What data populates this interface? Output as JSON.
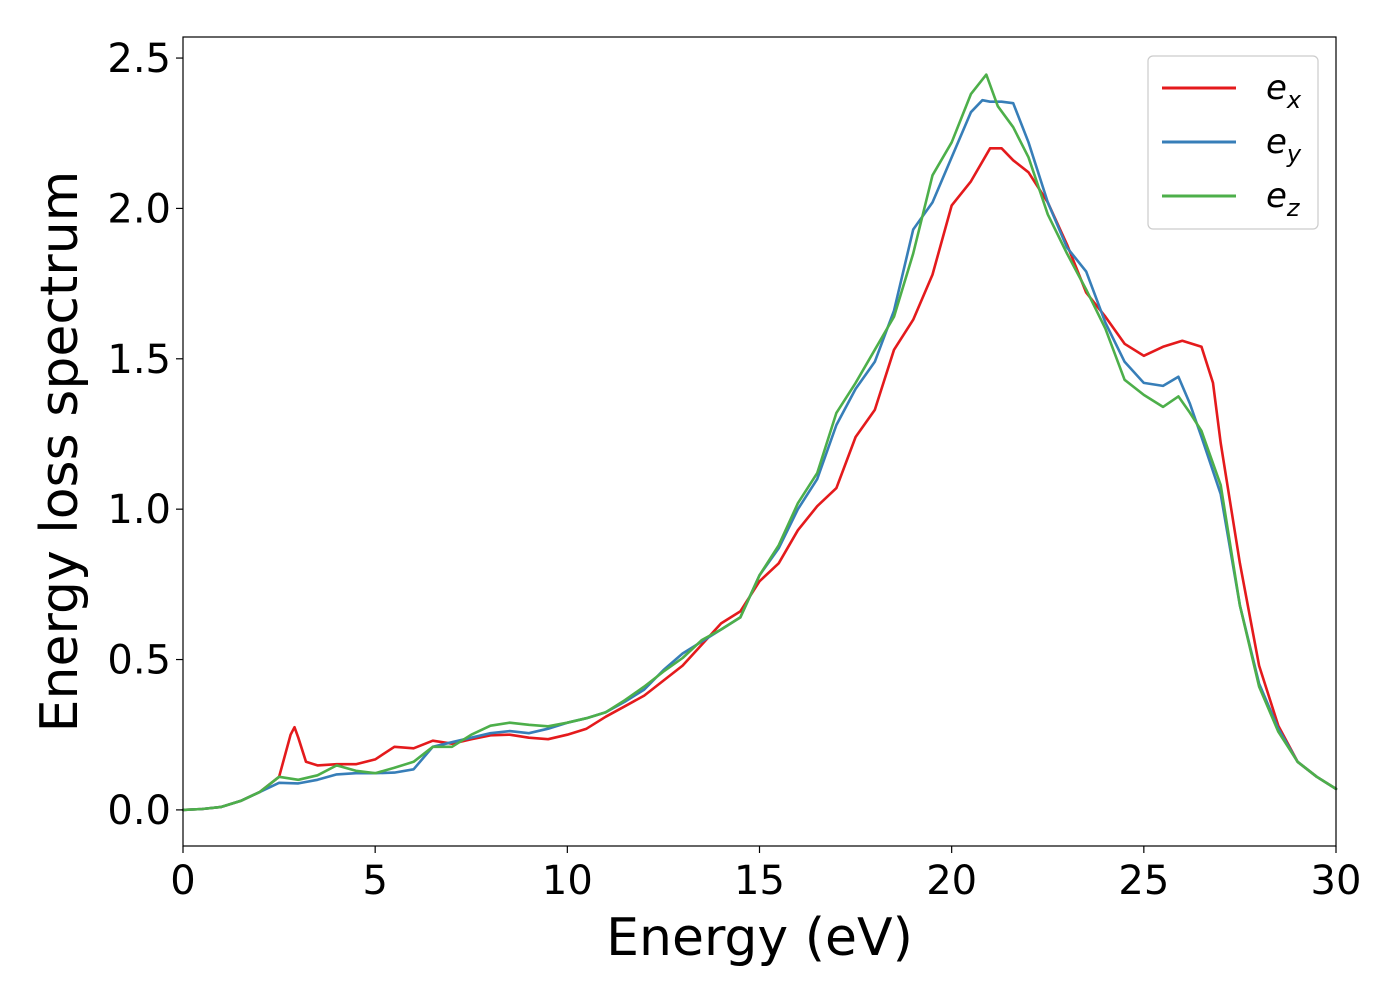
{
  "chart_data": {
    "type": "line",
    "title": "",
    "xlabel": "Energy (eV)",
    "ylabel": "Energy loss spectrum",
    "xlim": [
      0,
      30
    ],
    "ylim": [
      -0.12,
      2.57
    ],
    "xticks": [
      0,
      5,
      10,
      15,
      20,
      25,
      30
    ],
    "xtick_labels": [
      "0",
      "5",
      "10",
      "15",
      "20",
      "25",
      "30"
    ],
    "yticks": [
      0.0,
      0.5,
      1.0,
      1.5,
      2.0,
      2.5
    ],
    "ytick_labels": [
      "0.0",
      "0.5",
      "1.0",
      "1.5",
      "2.0",
      "2.5"
    ],
    "grid": false,
    "legend_position": "top-right",
    "series": [
      {
        "name": "e_x",
        "label_base": "e",
        "label_sub": "x",
        "color": "#e41a1c",
        "points": [
          [
            0,
            0.0
          ],
          [
            0.5,
            0.003
          ],
          [
            1.0,
            0.01
          ],
          [
            1.5,
            0.03
          ],
          [
            2.0,
            0.06
          ],
          [
            2.5,
            0.11
          ],
          [
            2.8,
            0.25
          ],
          [
            2.9,
            0.275
          ],
          [
            3.0,
            0.24
          ],
          [
            3.2,
            0.16
          ],
          [
            3.5,
            0.148
          ],
          [
            4.0,
            0.152
          ],
          [
            4.5,
            0.152
          ],
          [
            5.0,
            0.168
          ],
          [
            5.5,
            0.21
          ],
          [
            6.0,
            0.205
          ],
          [
            6.5,
            0.23
          ],
          [
            7.0,
            0.22
          ],
          [
            7.5,
            0.235
          ],
          [
            8.0,
            0.248
          ],
          [
            8.5,
            0.25
          ],
          [
            9.0,
            0.24
          ],
          [
            9.5,
            0.235
          ],
          [
            10.0,
            0.25
          ],
          [
            10.5,
            0.27
          ],
          [
            11.0,
            0.31
          ],
          [
            11.5,
            0.345
          ],
          [
            12.0,
            0.38
          ],
          [
            12.5,
            0.43
          ],
          [
            13.0,
            0.48
          ],
          [
            13.5,
            0.55
          ],
          [
            14.0,
            0.62
          ],
          [
            14.5,
            0.66
          ],
          [
            15.0,
            0.76
          ],
          [
            15.5,
            0.82
          ],
          [
            16.0,
            0.93
          ],
          [
            16.5,
            1.01
          ],
          [
            17.0,
            1.07
          ],
          [
            17.5,
            1.24
          ],
          [
            18.0,
            1.33
          ],
          [
            18.5,
            1.53
          ],
          [
            19.0,
            1.63
          ],
          [
            19.5,
            1.78
          ],
          [
            20.0,
            2.01
          ],
          [
            20.5,
            2.09
          ],
          [
            21.0,
            2.2
          ],
          [
            21.3,
            2.2
          ],
          [
            21.6,
            2.16
          ],
          [
            22.0,
            2.12
          ],
          [
            22.5,
            2.02
          ],
          [
            23.0,
            1.88
          ],
          [
            23.5,
            1.72
          ],
          [
            24.0,
            1.64
          ],
          [
            24.5,
            1.55
          ],
          [
            25.0,
            1.51
          ],
          [
            25.5,
            1.54
          ],
          [
            26.0,
            1.56
          ],
          [
            26.5,
            1.54
          ],
          [
            26.8,
            1.42
          ],
          [
            27.0,
            1.22
          ],
          [
            27.5,
            0.82
          ],
          [
            28.0,
            0.48
          ],
          [
            28.5,
            0.28
          ],
          [
            29.0,
            0.16
          ],
          [
            29.5,
            0.11
          ],
          [
            30.0,
            0.07
          ]
        ]
      },
      {
        "name": "e_y",
        "label_base": "e",
        "label_sub": "y",
        "color": "#377eb8",
        "points": [
          [
            0,
            0.0
          ],
          [
            0.5,
            0.003
          ],
          [
            1.0,
            0.01
          ],
          [
            1.5,
            0.03
          ],
          [
            2.0,
            0.06
          ],
          [
            2.5,
            0.09
          ],
          [
            3.0,
            0.088
          ],
          [
            3.5,
            0.1
          ],
          [
            4.0,
            0.118
          ],
          [
            4.5,
            0.122
          ],
          [
            5.0,
            0.122
          ],
          [
            5.5,
            0.124
          ],
          [
            6.0,
            0.135
          ],
          [
            6.5,
            0.21
          ],
          [
            7.0,
            0.225
          ],
          [
            7.5,
            0.24
          ],
          [
            8.0,
            0.255
          ],
          [
            8.5,
            0.262
          ],
          [
            9.0,
            0.255
          ],
          [
            9.5,
            0.27
          ],
          [
            10.0,
            0.29
          ],
          [
            10.5,
            0.305
          ],
          [
            11.0,
            0.325
          ],
          [
            11.5,
            0.36
          ],
          [
            12.0,
            0.4
          ],
          [
            12.5,
            0.465
          ],
          [
            13.0,
            0.52
          ],
          [
            13.5,
            0.56
          ],
          [
            14.0,
            0.6
          ],
          [
            14.5,
            0.64
          ],
          [
            15.0,
            0.78
          ],
          [
            15.5,
            0.87
          ],
          [
            16.0,
            1.0
          ],
          [
            16.5,
            1.1
          ],
          [
            17.0,
            1.28
          ],
          [
            17.5,
            1.4
          ],
          [
            18.0,
            1.49
          ],
          [
            18.5,
            1.66
          ],
          [
            19.0,
            1.93
          ],
          [
            19.5,
            2.02
          ],
          [
            20.0,
            2.17
          ],
          [
            20.5,
            2.32
          ],
          [
            20.8,
            2.36
          ],
          [
            21.0,
            2.355
          ],
          [
            21.3,
            2.355
          ],
          [
            21.6,
            2.35
          ],
          [
            22.0,
            2.22
          ],
          [
            22.5,
            2.02
          ],
          [
            23.0,
            1.87
          ],
          [
            23.5,
            1.79
          ],
          [
            24.0,
            1.62
          ],
          [
            24.5,
            1.49
          ],
          [
            25.0,
            1.42
          ],
          [
            25.5,
            1.41
          ],
          [
            25.9,
            1.44
          ],
          [
            26.2,
            1.35
          ],
          [
            26.5,
            1.24
          ],
          [
            27.0,
            1.05
          ],
          [
            27.5,
            0.68
          ],
          [
            28.0,
            0.42
          ],
          [
            28.5,
            0.27
          ],
          [
            29.0,
            0.16
          ],
          [
            29.5,
            0.11
          ],
          [
            30.0,
            0.07
          ]
        ]
      },
      {
        "name": "e_z",
        "label_base": "e",
        "label_sub": "z",
        "color": "#4daf4a",
        "points": [
          [
            0,
            0.0
          ],
          [
            0.5,
            0.003
          ],
          [
            1.0,
            0.01
          ],
          [
            1.5,
            0.03
          ],
          [
            2.0,
            0.06
          ],
          [
            2.5,
            0.11
          ],
          [
            3.0,
            0.1
          ],
          [
            3.5,
            0.115
          ],
          [
            4.0,
            0.148
          ],
          [
            4.5,
            0.13
          ],
          [
            5.0,
            0.122
          ],
          [
            5.5,
            0.14
          ],
          [
            6.0,
            0.16
          ],
          [
            6.5,
            0.21
          ],
          [
            7.0,
            0.21
          ],
          [
            7.5,
            0.25
          ],
          [
            8.0,
            0.28
          ],
          [
            8.5,
            0.29
          ],
          [
            9.0,
            0.283
          ],
          [
            9.5,
            0.278
          ],
          [
            10.0,
            0.29
          ],
          [
            10.5,
            0.305
          ],
          [
            11.0,
            0.325
          ],
          [
            11.5,
            0.365
          ],
          [
            12.0,
            0.41
          ],
          [
            12.5,
            0.46
          ],
          [
            13.0,
            0.505
          ],
          [
            13.5,
            0.565
          ],
          [
            14.0,
            0.6
          ],
          [
            14.5,
            0.64
          ],
          [
            15.0,
            0.78
          ],
          [
            15.5,
            0.88
          ],
          [
            16.0,
            1.02
          ],
          [
            16.5,
            1.12
          ],
          [
            17.0,
            1.32
          ],
          [
            17.5,
            1.42
          ],
          [
            18.0,
            1.53
          ],
          [
            18.5,
            1.64
          ],
          [
            19.0,
            1.85
          ],
          [
            19.5,
            2.11
          ],
          [
            20.0,
            2.22
          ],
          [
            20.5,
            2.38
          ],
          [
            20.9,
            2.445
          ],
          [
            21.2,
            2.34
          ],
          [
            21.6,
            2.27
          ],
          [
            22.0,
            2.17
          ],
          [
            22.5,
            1.98
          ],
          [
            23.0,
            1.85
          ],
          [
            23.5,
            1.73
          ],
          [
            24.0,
            1.6
          ],
          [
            24.5,
            1.43
          ],
          [
            25.0,
            1.38
          ],
          [
            25.5,
            1.34
          ],
          [
            25.9,
            1.375
          ],
          [
            26.2,
            1.32
          ],
          [
            26.5,
            1.26
          ],
          [
            27.0,
            1.08
          ],
          [
            27.5,
            0.68
          ],
          [
            28.0,
            0.41
          ],
          [
            28.5,
            0.26
          ],
          [
            29.0,
            0.16
          ],
          [
            29.5,
            0.11
          ],
          [
            30.0,
            0.07
          ]
        ]
      }
    ]
  }
}
